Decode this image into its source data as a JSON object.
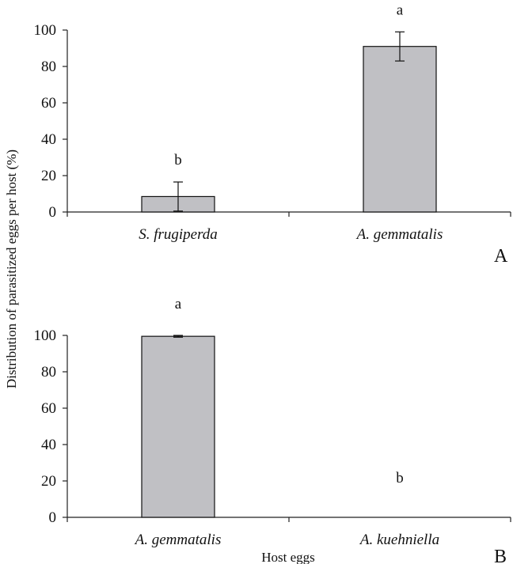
{
  "chart_data": [
    {
      "type": "bar",
      "panel_label": "A",
      "categories": [
        "S. frugiperda",
        "A. gemmatalis"
      ],
      "values": [
        8.5,
        91
      ],
      "error": [
        8,
        8
      ],
      "significance": [
        "b",
        "a"
      ],
      "ylim": [
        0,
        100
      ],
      "yticks": [
        "0",
        "20",
        "40",
        "60",
        "80",
        "100"
      ],
      "bar_color": "#c0c0c4",
      "grid": false
    },
    {
      "type": "bar",
      "panel_label": "B",
      "categories": [
        "A. gemmatalis",
        "A. kuehniella"
      ],
      "values": [
        99.5,
        0
      ],
      "error": [
        0.5,
        0
      ],
      "significance": [
        "a",
        "b"
      ],
      "ylim": [
        0,
        100
      ],
      "yticks": [
        "0",
        "20",
        "40",
        "60",
        "80",
        "100"
      ],
      "bar_color": "#c0c0c4",
      "grid": false
    }
  ],
  "ylabel": "Distribution of parasitized eggs per host (%)",
  "xlabel": "Host eggs"
}
